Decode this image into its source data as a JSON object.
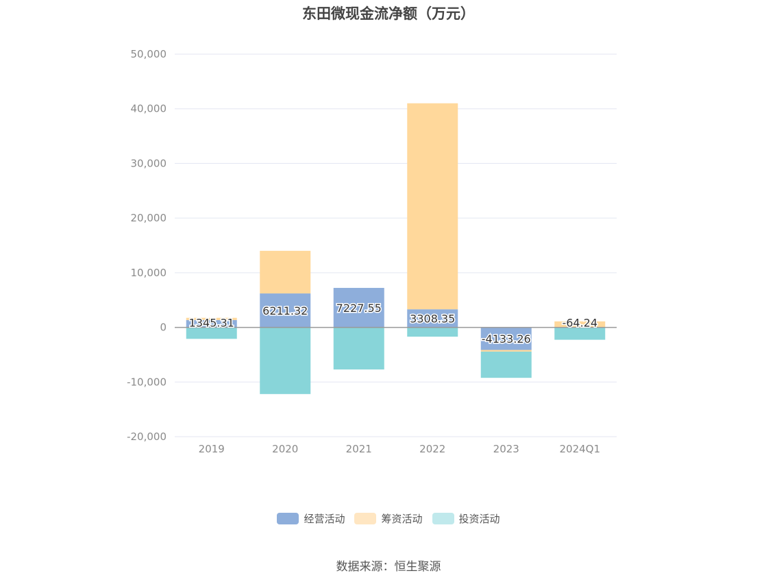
{
  "chart_data": {
    "type": "bar",
    "stacked": true,
    "title": "东田微现金流净额（万元）",
    "categories": [
      "2019",
      "2020",
      "2021",
      "2022",
      "2023",
      "2024Q1"
    ],
    "series": [
      {
        "name": "经营活动",
        "color": "#8eaedb",
        "values": [
          1345.31,
          6211.32,
          7227.55,
          3308.35,
          -4133.26,
          -64.24
        ]
      },
      {
        "name": "筹资活动",
        "color": "#ffd89b",
        "values": [
          400,
          7800,
          0,
          37700,
          -300,
          1100
        ]
      },
      {
        "name": "投资活动",
        "color": "#88d5d9",
        "values": [
          -2100,
          -12200,
          -7700,
          -1700,
          -4800,
          -2200
        ]
      }
    ],
    "data_labels": [
      "1345.31",
      "6211.32",
      "7227.55",
      "3308.35",
      "-4133.26",
      "-64.24"
    ],
    "yticks": [
      50000,
      40000,
      30000,
      20000,
      10000,
      0,
      -10000,
      -20000
    ],
    "ytick_labels": [
      "50,000",
      "40,000",
      "30,000",
      "20,000",
      "10,000",
      "0",
      "-10,000",
      "-20,000"
    ],
    "ylim": [
      -20000,
      50000
    ],
    "grid": true,
    "legend_position": "bottom"
  },
  "legend_labels": [
    "经营活动",
    "筹资活动",
    "投资活动"
  ],
  "legend_colors": [
    "#8eaedb",
    "#ffe6c2",
    "#c0e9ec"
  ],
  "source": "数据来源：恒生聚源"
}
